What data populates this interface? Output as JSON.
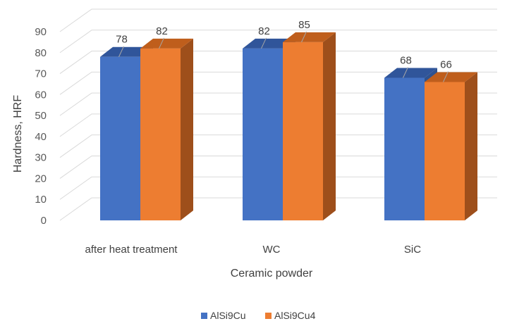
{
  "chart_data": {
    "type": "bar",
    "title": "",
    "xlabel": "Ceramic powder",
    "ylabel": "Hardness, HRF",
    "categories": [
      "after heat treatment",
      "WC",
      "SiC"
    ],
    "series": [
      {
        "name": "AlSi9Cu",
        "values": [
          78,
          82,
          68
        ],
        "color": "#4472C4",
        "side_color": "#2F528F",
        "top_color": "#30559A"
      },
      {
        "name": "AlSi9Cu4",
        "values": [
          82,
          85,
          66
        ],
        "color": "#ED7D31",
        "side_color": "#9E4F1B",
        "top_color": "#BF5E1C"
      }
    ],
    "ylim": [
      0,
      90
    ],
    "yticks": [
      0,
      10,
      20,
      30,
      40,
      50,
      60,
      70,
      80,
      90
    ],
    "grid": true,
    "legend_position": "bottom",
    "style": "3d-clustered-column"
  }
}
